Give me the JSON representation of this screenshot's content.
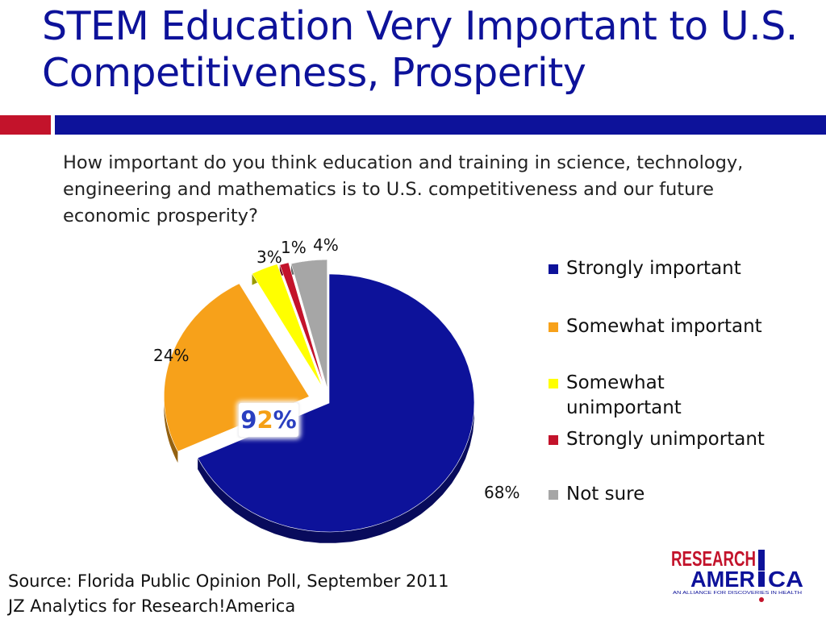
{
  "slide": {
    "title": "STEM Education Very Important to U.S. Competitiveness, Prosperity",
    "question": "How important do you think education and training in science, technology, engineering and mathematics is to U.S. competitiveness and our future economic prosperity?",
    "callout": {
      "digit1": "9",
      "digit2": "2",
      "suffix": "%"
    },
    "source_line1": "Source: Florida Public Opinion Poll, September 2011",
    "source_line2": "JZ Analytics for Research!America",
    "logo": {
      "word1": "RESEARCH",
      "word2a": "AMER",
      "word2b": "CA",
      "tagline": "AN ALLIANCE FOR DISCOVERIES IN HEALTH"
    }
  },
  "chart_data": {
    "type": "pie",
    "title": "How important do you think education and training in science, technology, engineering and mathematics is to U.S. competitiveness and our future economic prosperity?",
    "categories": [
      "Strongly important",
      "Somewhat important",
      "Somewhat unimportant",
      "Strongly unimportant",
      "Not sure"
    ],
    "values": [
      68,
      24,
      3,
      1,
      4
    ],
    "labels": [
      "68%",
      "24%",
      "3%",
      "1%",
      "4%"
    ],
    "colors": [
      "#0d129a",
      "#f7a11a",
      "#ffff00",
      "#c3132b",
      "#a6a6a6"
    ],
    "legend_position": "right"
  }
}
